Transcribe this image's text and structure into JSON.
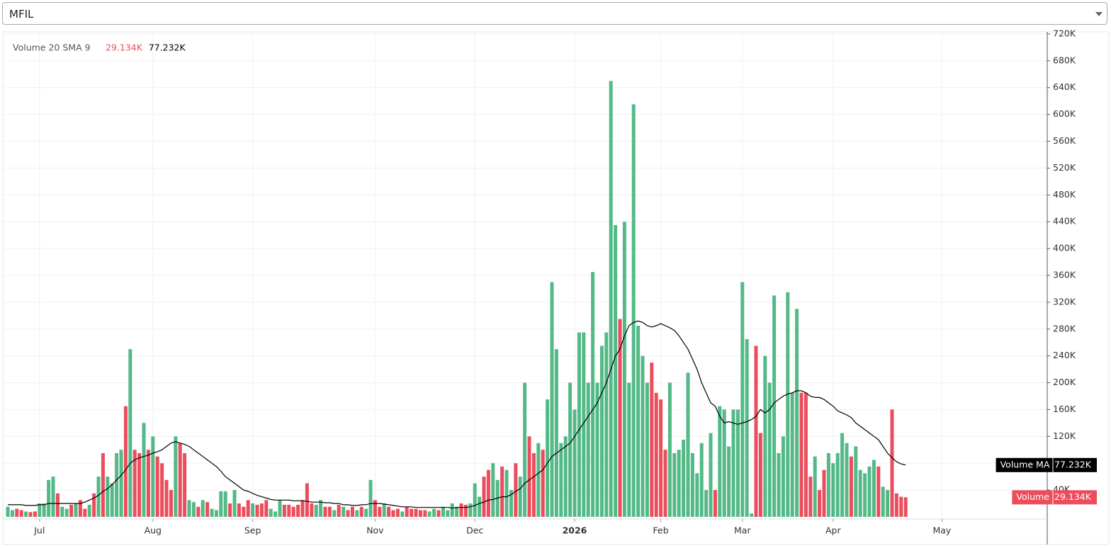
{
  "selector": {
    "value": "MFIL"
  },
  "chart_data": {
    "type": "bar",
    "indicator": "Volume 20 SMA 9",
    "categories": [
      null,
      null,
      null,
      null,
      null,
      null,
      null,
      "Jul",
      null,
      null,
      null,
      null,
      null,
      null,
      null,
      null,
      null,
      null,
      null,
      null,
      null,
      null,
      null,
      null,
      null,
      null,
      null,
      null,
      null,
      null,
      null,
      null,
      "Aug",
      null,
      null,
      null,
      null,
      null,
      null,
      null,
      null,
      null,
      null,
      null,
      null,
      null,
      null,
      null,
      null,
      null,
      null,
      null,
      null,
      null,
      "Sep",
      null,
      null,
      null,
      null,
      null,
      null,
      null,
      null,
      null,
      null,
      null,
      null,
      null,
      null,
      null,
      null,
      null,
      null,
      null,
      null,
      null,
      null,
      null,
      null,
      null,
      null,
      "Nov",
      null,
      null,
      null,
      null,
      null,
      null,
      null,
      null,
      null,
      null,
      null,
      null,
      null,
      null,
      null,
      null,
      null,
      null,
      null,
      null,
      null,
      "Dec",
      null,
      null,
      null,
      null,
      null,
      null,
      null,
      null,
      null,
      null,
      null,
      null,
      null,
      null,
      null,
      null,
      null,
      null,
      null,
      null,
      null,
      "2026",
      null,
      null,
      null,
      null,
      null,
      null,
      null,
      null,
      null,
      null,
      null,
      null,
      null,
      null,
      null,
      null,
      null,
      null,
      "Feb",
      null,
      null,
      null,
      null,
      null,
      null,
      null,
      null,
      null,
      null,
      null,
      null,
      null,
      null,
      null,
      null,
      null,
      "Mar",
      null,
      null,
      null,
      null,
      null,
      null,
      null,
      null,
      null,
      null,
      null,
      null,
      null,
      null,
      null,
      null,
      null,
      null,
      null,
      "Apr",
      null,
      null,
      null,
      null,
      null,
      null,
      null,
      null,
      null,
      null,
      null,
      null,
      null,
      null,
      null,
      null,
      null,
      null,
      null,
      null,
      null,
      null,
      null,
      "May",
      null
    ],
    "series": [
      {
        "name": "Volume",
        "type": "bar",
        "last_value_label": "29.134K",
        "values": [
          15000,
          10000,
          12000,
          10000,
          8000,
          7000,
          8000,
          20000,
          20000,
          55000,
          60000,
          35000,
          15000,
          12000,
          18000,
          20000,
          25000,
          12000,
          18000,
          35000,
          60000,
          95000,
          60000,
          50000,
          95000,
          100000,
          165000,
          250000,
          100000,
          95000,
          140000,
          100000,
          120000,
          90000,
          80000,
          55000,
          40000,
          120000,
          110000,
          95000,
          25000,
          22000,
          15000,
          25000,
          22000,
          12000,
          10000,
          38000,
          38000,
          20000,
          40000,
          20000,
          15000,
          25000,
          20000,
          18000,
          20000,
          25000,
          12000,
          8000,
          25000,
          18000,
          18000,
          15000,
          18000,
          25000,
          50000,
          20000,
          18000,
          25000,
          15000,
          15000,
          10000,
          18000,
          15000,
          10000,
          15000,
          10000,
          15000,
          12000,
          55000,
          25000,
          15000,
          20000,
          15000,
          10000,
          12000,
          8000,
          15000,
          12000,
          12000,
          10000,
          10000,
          8000,
          12000,
          10000,
          15000,
          10000,
          20000,
          15000,
          20000,
          18000,
          20000,
          50000,
          30000,
          60000,
          70000,
          80000,
          55000,
          75000,
          70000,
          40000,
          80000,
          60000,
          200000,
          120000,
          95000,
          110000,
          100000,
          175000,
          350000,
          250000,
          110000,
          120000,
          200000,
          160000,
          275000,
          275000,
          200000,
          365000,
          200000,
          255000,
          275000,
          650000,
          435000,
          295000,
          440000,
          200000,
          615000,
          285000,
          240000,
          200000,
          230000,
          185000,
          175000,
          100000,
          200000,
          95000,
          100000,
          115000,
          215000,
          95000,
          65000,
          110000,
          40000,
          125000,
          40000,
          165000,
          160000,
          105000,
          160000,
          160000,
          350000,
          265000,
          5000,
          255000,
          125000,
          240000,
          200000,
          330000,
          95000,
          120000,
          335000,
          185000,
          310000,
          185000,
          185000,
          60000,
          90000,
          40000,
          70000,
          95000,
          80000,
          95000,
          125000,
          110000,
          90000,
          105000,
          70000,
          65000,
          75000,
          85000,
          75000,
          45000,
          40000,
          160000,
          35000,
          30000,
          29134,
          null,
          null,
          null,
          null,
          null,
          null,
          null,
          null,
          null
        ],
        "colors": [
          "#53b987",
          "#53b987",
          "#eb4d5c",
          "#eb4d5c",
          "#53b987",
          "#eb4d5c",
          "#eb4d5c",
          "#53b987",
          "#53b987",
          "#53b987",
          "#53b987",
          "#eb4d5c",
          "#53b987",
          "#53b987",
          "#eb4d5c",
          "#53b987",
          "#eb4d5c",
          "#eb4d5c",
          "#53b987",
          "#eb4d5c",
          "#53b987",
          "#eb4d5c",
          "#53b987",
          "#53b987",
          "#53b987",
          "#53b987",
          "#eb4d5c",
          "#53b987",
          "#eb4d5c",
          "#eb4d5c",
          "#53b987",
          "#eb4d5c",
          "#53b987",
          "#eb4d5c",
          "#eb4d5c",
          "#eb4d5c",
          "#eb4d5c",
          "#53b987",
          "#eb4d5c",
          "#eb4d5c",
          "#53b987",
          "#53b987",
          "#eb4d5c",
          "#53b987",
          "#eb4d5c",
          "#53b987",
          "#53b987",
          "#53b987",
          "#53b987",
          "#eb4d5c",
          "#53b987",
          "#eb4d5c",
          "#eb4d5c",
          "#eb4d5c",
          "#53b987",
          "#eb4d5c",
          "#eb4d5c",
          "#eb4d5c",
          "#53b987",
          "#53b987",
          "#53b987",
          "#eb4d5c",
          "#eb4d5c",
          "#eb4d5c",
          "#eb4d5c",
          "#eb4d5c",
          "#eb4d5c",
          "#eb4d5c",
          "#53b987",
          "#53b987",
          "#eb4d5c",
          "#eb4d5c",
          "#53b987",
          "#eb4d5c",
          "#53b987",
          "#eb4d5c",
          "#eb4d5c",
          "#53b987",
          "#eb4d5c",
          "#53b987",
          "#53b987",
          "#eb4d5c",
          "#eb4d5c",
          "#53b987",
          "#eb4d5c",
          "#eb4d5c",
          "#eb4d5c",
          "#53b987",
          "#eb4d5c",
          "#eb4d5c",
          "#eb4d5c",
          "#eb4d5c",
          "#eb4d5c",
          "#53b987",
          "#53b987",
          "#eb4d5c",
          "#53b987",
          "#53b987",
          "#53b987",
          "#53b987",
          "#eb4d5c",
          "#eb4d5c",
          "#53b987",
          "#53b987",
          "#53b987",
          "#eb4d5c",
          "#eb4d5c",
          "#53b987",
          "#53b987",
          "#eb4d5c",
          "#53b987",
          "#53b987",
          "#eb4d5c",
          "#53b987",
          "#53b987",
          "#eb4d5c",
          "#eb4d5c",
          "#53b987",
          "#eb4d5c",
          "#53b987",
          "#53b987",
          "#53b987",
          "#53b987",
          "#53b987",
          "#53b987",
          "#53b987",
          "#53b987",
          "#53b987",
          "#53b987",
          "#53b987",
          "#53b987",
          "#53b987",
          "#53b987",
          "#53b987",
          "#53b987",
          "#eb4d5c",
          "#53b987",
          "#53b987",
          "#53b987",
          "#53b987",
          "#53b987",
          "#53b987",
          "#eb4d5c",
          "#eb4d5c",
          "#eb4d5c",
          "#eb4d5c",
          "#53b987",
          "#53b987",
          "#53b987",
          "#53b987",
          "#53b987",
          "#53b987",
          "#53b987",
          "#53b987",
          "#53b987",
          "#53b987",
          "#eb4d5c",
          "#53b987",
          "#53b987",
          "#53b987",
          "#53b987",
          "#53b987",
          "#53b987",
          "#53b987",
          "#53b987",
          "#eb4d5c",
          "#eb4d5c",
          "#53b987",
          "#53b987",
          "#53b987",
          "#53b987",
          "#53b987",
          "#53b987",
          "#53b987",
          "#53b987",
          "#eb4d5c",
          "#eb4d5c",
          "#eb4d5c",
          "#53b987",
          "#eb4d5c",
          "#eb4d5c",
          "#53b987",
          "#53b987",
          "#53b987",
          "#53b987",
          "#53b987",
          "#eb4d5c",
          "#53b987",
          "#53b987",
          "#53b987",
          "#53b987",
          "#53b987",
          "#eb4d5c",
          "#53b987",
          "#53b987",
          "#eb4d5c",
          "#eb4d5c",
          "#eb4d5c",
          "#eb4d5c",
          null,
          null,
          null,
          null,
          null,
          null,
          null,
          null,
          null
        ]
      },
      {
        "name": "Volume MA",
        "type": "line",
        "color": "#000000",
        "last_value_label": "77.232K",
        "values": [
          18000,
          18000,
          18000,
          18000,
          17000,
          17000,
          17000,
          18000,
          18000,
          20000,
          20000,
          20000,
          20000,
          20000,
          20000,
          20000,
          20000,
          22000,
          25000,
          28000,
          32000,
          38000,
          42000,
          48000,
          55000,
          62000,
          70000,
          80000,
          85000,
          88000,
          90000,
          92000,
          95000,
          97000,
          100000,
          105000,
          110000,
          112000,
          110000,
          108000,
          105000,
          100000,
          95000,
          90000,
          85000,
          80000,
          75000,
          68000,
          60000,
          55000,
          50000,
          45000,
          40000,
          38000,
          35000,
          32000,
          30000,
          28000,
          26000,
          25000,
          25000,
          25000,
          25000,
          24000,
          24000,
          24000,
          23000,
          22000,
          22000,
          22000,
          21000,
          21000,
          20000,
          20000,
          18000,
          18000,
          17000,
          17000,
          18000,
          18000,
          20000,
          20000,
          20000,
          19000,
          18000,
          17000,
          16000,
          15000,
          15000,
          15000,
          14000,
          14000,
          14000,
          14000,
          14000,
          14000,
          14000,
          14000,
          13000,
          14000,
          14000,
          14000,
          15000,
          17000,
          20000,
          22000,
          25000,
          26000,
          28000,
          30000,
          30000,
          33000,
          38000,
          42000,
          50000,
          55000,
          60000,
          65000,
          70000,
          80000,
          90000,
          95000,
          100000,
          105000,
          110000,
          120000,
          130000,
          140000,
          150000,
          160000,
          170000,
          185000,
          200000,
          220000,
          240000,
          250000,
          270000,
          285000,
          290000,
          292000,
          290000,
          285000,
          283000,
          285000,
          288000,
          285000,
          282000,
          278000,
          270000,
          260000,
          250000,
          235000,
          220000,
          200000,
          185000,
          170000,
          165000,
          150000,
          140000,
          142000,
          140000,
          138000,
          140000,
          142000,
          145000,
          150000,
          160000,
          155000,
          160000,
          170000,
          175000,
          180000,
          183000,
          185000,
          188000,
          188000,
          185000,
          180000,
          178000,
          178000,
          175000,
          170000,
          165000,
          158000,
          155000,
          152000,
          148000,
          140000,
          135000,
          130000,
          125000,
          120000,
          115000,
          105000,
          95000,
          88000,
          82000,
          79000,
          77232,
          null,
          null,
          null,
          null,
          null,
          null,
          null,
          null,
          null
        ]
      }
    ],
    "ylim": [
      0,
      721000
    ],
    "yticks": [
      {
        "value": 40000,
        "label": "40K"
      },
      {
        "value": 80000,
        "label": "80K"
      },
      {
        "value": 120000,
        "label": "120K"
      },
      {
        "value": 160000,
        "label": "160K"
      },
      {
        "value": 200000,
        "label": "200K"
      },
      {
        "value": 240000,
        "label": "240K"
      },
      {
        "value": 280000,
        "label": "280K"
      },
      {
        "value": 320000,
        "label": "320K"
      },
      {
        "value": 360000,
        "label": "360K"
      },
      {
        "value": 400000,
        "label": "400K"
      },
      {
        "value": 440000,
        "label": "440K"
      },
      {
        "value": 480000,
        "label": "480K"
      },
      {
        "value": 520000,
        "label": "520K"
      },
      {
        "value": 560000,
        "label": "560K"
      },
      {
        "value": 600000,
        "label": "600K"
      },
      {
        "value": 640000,
        "label": "640K"
      },
      {
        "value": 680000,
        "label": "680K"
      },
      {
        "value": 720000,
        "label": "720K"
      }
    ],
    "grid": true
  }
}
